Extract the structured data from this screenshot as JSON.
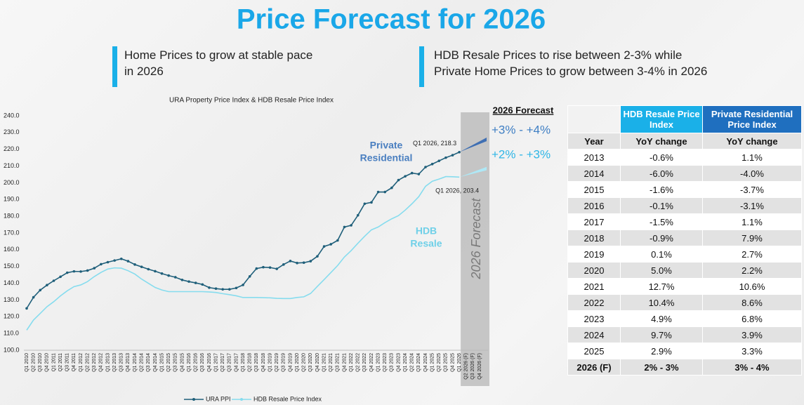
{
  "header": {
    "title": "Price Forecast for 2026"
  },
  "highlights": [
    [
      "Home Prices to grow at stable pace",
      "in 2026"
    ],
    [
      "HDB Resale Prices to rise between 2-3% while",
      "Private Home Prices to grow between 3-4% in 2026"
    ]
  ],
  "chart_data": {
    "type": "line",
    "title": "URA Property Price Index & HDB Resale Price Index",
    "categories": [
      "Q1 2010",
      "Q2 2010",
      "Q3 2010",
      "Q4 2010",
      "Q1 2011",
      "Q2 2011",
      "Q3 2011",
      "Q4 2011",
      "Q1 2012",
      "Q2 2012",
      "Q3 2012",
      "Q4 2012",
      "Q1 2013",
      "Q2 2013",
      "Q3 2013",
      "Q4 2013",
      "Q1 2014",
      "Q2 2014",
      "Q3 2014",
      "Q4 2014",
      "Q1 2015",
      "Q2 2015",
      "Q3 2015",
      "Q4 2015",
      "Q1 2016",
      "Q2 2016",
      "Q3 2016",
      "Q4 2016",
      "Q1 2017",
      "Q2 2017",
      "Q3 2017",
      "Q4 2017",
      "Q1 2018",
      "Q2 2018",
      "Q3 2018",
      "Q4 2018",
      "Q1 2019",
      "Q2 2019",
      "Q3 2019",
      "Q4 2019",
      "Q1 2020",
      "Q2 2020",
      "Q3 2020",
      "Q4 2020",
      "Q1 2021",
      "Q2 2021",
      "Q3 2021",
      "Q4 2021",
      "Q1 2022",
      "Q2 2022",
      "Q3 2022",
      "Q4 2022",
      "Q1 2023",
      "Q2 2023",
      "Q3 2023",
      "Q4 2023",
      "Q1 2024",
      "Q2 2024",
      "Q3 2024",
      "Q4 2024",
      "Q1 2025",
      "Q2 2025",
      "Q3 2025",
      "Q4 2025",
      "Q1 2026",
      "Q2 2026 (F)",
      "Q3 2026 (F)",
      "Q4 2026 (F)"
    ],
    "series": [
      {
        "name": "URA PPI",
        "color": "#1f5f7a",
        "markers": true,
        "values": [
          125.0,
          131.6,
          135.9,
          138.9,
          141.5,
          143.9,
          146.3,
          147.1,
          147.0,
          147.6,
          149.0,
          151.4,
          152.6,
          153.6,
          154.6,
          153.2,
          151.2,
          149.8,
          148.4,
          147.2,
          145.8,
          144.6,
          143.6,
          142.0,
          141.0,
          140.2,
          139.3,
          137.4,
          136.8,
          136.4,
          136.4,
          137.2,
          139.0,
          144.1,
          148.8,
          149.6,
          149.4,
          148.6,
          151.2,
          153.3,
          152.1,
          152.3,
          153.2,
          156.1,
          162.0,
          163.3,
          165.6,
          173.6,
          174.6,
          180.6,
          187.5,
          188.3,
          194.5,
          194.5,
          197.0,
          201.6,
          203.9,
          205.8,
          205.2,
          209.4,
          211.2,
          213.1,
          215.0,
          216.5,
          218.3,
          null,
          null,
          null
        ]
      },
      {
        "name": "HDB Resale Price Index",
        "color": "#86dcee",
        "markers": false,
        "values": [
          112.0,
          118.0,
          122.0,
          126.0,
          129.0,
          132.5,
          135.5,
          138.0,
          139.0,
          141.0,
          144.0,
          146.5,
          148.5,
          149.2,
          149.0,
          147.5,
          145.5,
          142.5,
          140.0,
          137.5,
          136.0,
          135.0,
          135.0,
          135.0,
          135.0,
          135.0,
          135.0,
          134.8,
          134.5,
          133.8,
          133.2,
          132.5,
          131.5,
          131.5,
          131.5,
          131.4,
          131.3,
          131.0,
          130.9,
          130.9,
          131.5,
          131.9,
          133.9,
          138.1,
          142.2,
          146.4,
          150.6,
          155.7,
          159.5,
          163.9,
          168.1,
          171.9,
          173.6,
          176.2,
          178.5,
          180.4,
          183.7,
          187.5,
          191.7,
          197.9,
          200.9,
          202.2,
          203.7,
          203.6,
          203.4,
          null,
          null,
          null
        ]
      }
    ],
    "ylim": [
      100,
      240
    ],
    "yticks": [
      {
        "value": 100,
        "label": "100.0"
      },
      {
        "value": 110,
        "label": "110.0"
      },
      {
        "value": 120,
        "label": "120.0"
      },
      {
        "value": 130,
        "label": "130.0"
      },
      {
        "value": 140,
        "label": "140.0"
      },
      {
        "value": 150,
        "label": "150.0"
      },
      {
        "value": 160,
        "label": "160.0"
      },
      {
        "value": 170,
        "label": "170.0"
      },
      {
        "value": 180,
        "label": "180.0"
      },
      {
        "value": 190,
        "label": "190.0"
      },
      {
        "value": 200,
        "label": "200.0"
      },
      {
        "value": 210,
        "label": "210.0"
      },
      {
        "value": 220,
        "label": "220.0"
      },
      {
        "value": 230,
        "label": "230.0"
      },
      {
        "value": 240,
        "label": "240.0"
      }
    ],
    "grid": false,
    "legend": "bottom",
    "forecast_label": "2026 Forecast",
    "forecast_header": "2026 Forecast",
    "forecast_bands": [
      {
        "series": 0,
        "label": "+3% - +4%",
        "low": 3,
        "high": 4,
        "color": "#3f6fb3",
        "label_color": "#3f7fc4"
      },
      {
        "series": 1,
        "label": "+2% - +3%",
        "low": 2,
        "high": 3,
        "color": "#aee8f6",
        "label_color": "#2fb6e6"
      }
    ],
    "point_labels": [
      {
        "text": "Q1 2026, 218.3",
        "series": 0,
        "index": 64
      },
      {
        "text": "Q1 2026, 203.4",
        "series": 1,
        "index": 64
      }
    ],
    "series_labels": [
      {
        "lines": [
          "Private",
          "Residential"
        ],
        "color": "#4a7fc0"
      },
      {
        "lines": [
          "HDB",
          "Resale"
        ],
        "color": "#6fd0e8"
      }
    ]
  },
  "table": {
    "columns": [
      "HDB Resale Price Index",
      "Private Residential Price Index"
    ],
    "subheader": [
      "Year",
      "YoY change",
      "YoY change"
    ],
    "rows": [
      [
        "2013",
        "-0.6%",
        "1.1%"
      ],
      [
        "2014",
        "-6.0%",
        "-4.0%"
      ],
      [
        "2015",
        "-1.6%",
        "-3.7%"
      ],
      [
        "2016",
        "-0.1%",
        "-3.1%"
      ],
      [
        "2017",
        "-1.5%",
        "1.1%"
      ],
      [
        "2018",
        "-0.9%",
        "7.9%"
      ],
      [
        "2019",
        "0.1%",
        "2.7%"
      ],
      [
        "2020",
        "5.0%",
        "2.2%"
      ],
      [
        "2021",
        "12.7%",
        "10.6%"
      ],
      [
        "2022",
        "10.4%",
        "8.6%"
      ],
      [
        "2023",
        "4.9%",
        "6.8%"
      ],
      [
        "2024",
        "9.7%",
        "3.9%"
      ],
      [
        "2025",
        "2.9%",
        "3.3%"
      ],
      [
        "2026 (F)",
        "2% - 3%",
        "3% - 4%"
      ]
    ]
  }
}
